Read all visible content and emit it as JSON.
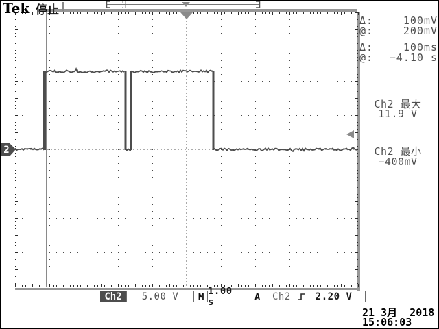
{
  "header": {
    "logo": "Tek",
    "status": "停止"
  },
  "cursor_readout": {
    "rows": [
      {
        "label": "Δ:",
        "value": "100mV"
      },
      {
        "label": "@:",
        "value": "200mV"
      },
      {
        "label": "Δ:",
        "value": "100ms"
      },
      {
        "label": "@:",
        "value": "−4.10 s"
      }
    ]
  },
  "measurements": [
    {
      "label": "Ch2 最大",
      "value": "11.9 V"
    },
    {
      "label": "Ch2 最小",
      "value": "−400mV"
    }
  ],
  "channel_badge": {
    "label": "2"
  },
  "status_bar": {
    "channel": "Ch2",
    "scale": "5.00 V",
    "main_label": "M",
    "timebase": "1.00 s",
    "acq_label": "A",
    "trigger_source": "Ch2",
    "trigger_level": "2.20 V"
  },
  "datetime": {
    "date": "21 3月  2018",
    "time": "15:06:03"
  },
  "colors": {
    "trace": "#4d4d4d",
    "graticule_edge": "#2b2b2b",
    "graticule_dot": "#4a4a4a",
    "marker_gray": "#8a8a8a",
    "badge_bg": "#4d4d4d"
  },
  "chart_data": {
    "type": "line",
    "title": "Ch2 pulse waveform",
    "x_units": "s",
    "y_units": "V",
    "seconds_per_div": 1.0,
    "volts_per_div": 5.0,
    "x_range_div": [
      -5,
      5
    ],
    "y_range_div": [
      -4,
      4
    ],
    "ground_v": 0,
    "segments": [
      {
        "t_start": -5.0,
        "t_end": -4.14,
        "v": 0
      },
      {
        "t_start": -4.14,
        "t_end": -1.78,
        "v": 11.4
      },
      {
        "t_start": -1.78,
        "t_end": -1.62,
        "v": 0
      },
      {
        "t_start": -1.62,
        "t_end": 0.78,
        "v": 11.4
      },
      {
        "t_start": 0.78,
        "t_end": 5.0,
        "v": 0
      }
    ],
    "noise_v": 0.3,
    "cursors": {
      "type": "time",
      "t1": -4.2,
      "t2": -4.1,
      "delta_t_s": 0.1,
      "at_t_s": -4.1,
      "delta_v_mV": 100,
      "at_v_mV": 200
    },
    "trigger_level_v": 2.2,
    "trigger_t": 0,
    "measured_max_v": 11.9,
    "measured_min_v": -0.4
  }
}
